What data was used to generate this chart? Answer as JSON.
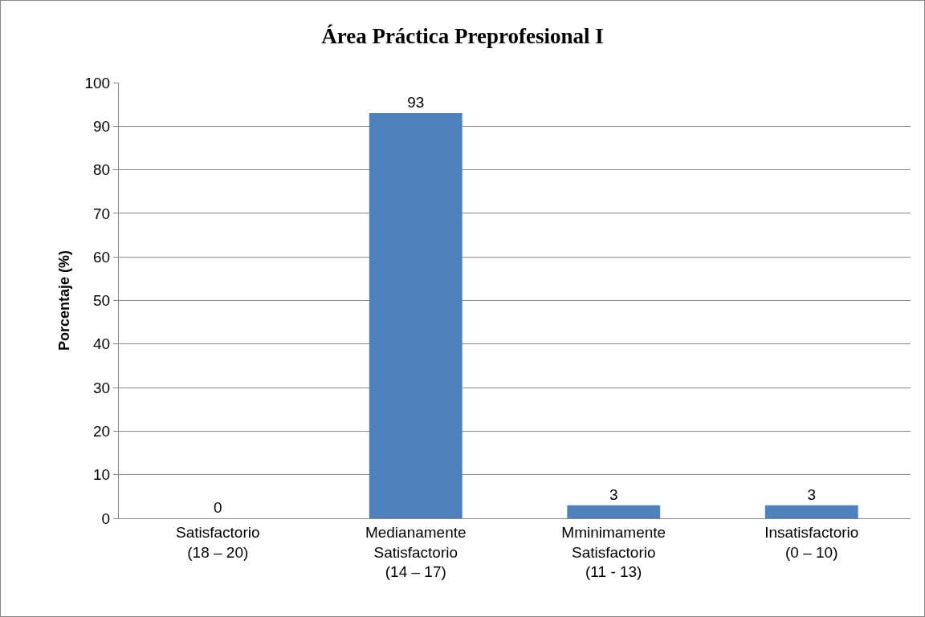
{
  "chart_data": {
    "type": "bar",
    "title": "Área Práctica Preprofesional I",
    "ylabel": "Porcentaje (%)",
    "categories": [
      "Satisfactorio\n(18 – 20)",
      "Medianamente\nSatisfactorio\n(14 – 17)",
      "Mminimamente\nSatisfactorio\n(11 - 13)",
      "Insatisfactorio\n(0 – 10)"
    ],
    "values": [
      0,
      93,
      3,
      3
    ],
    "color": "#4f81bd",
    "data_labels": true,
    "ylim": [
      0,
      100
    ],
    "yticks": [
      0,
      10,
      20,
      30,
      40,
      50,
      60,
      70,
      80,
      90,
      100
    ],
    "grid": "y",
    "legend": false
  }
}
